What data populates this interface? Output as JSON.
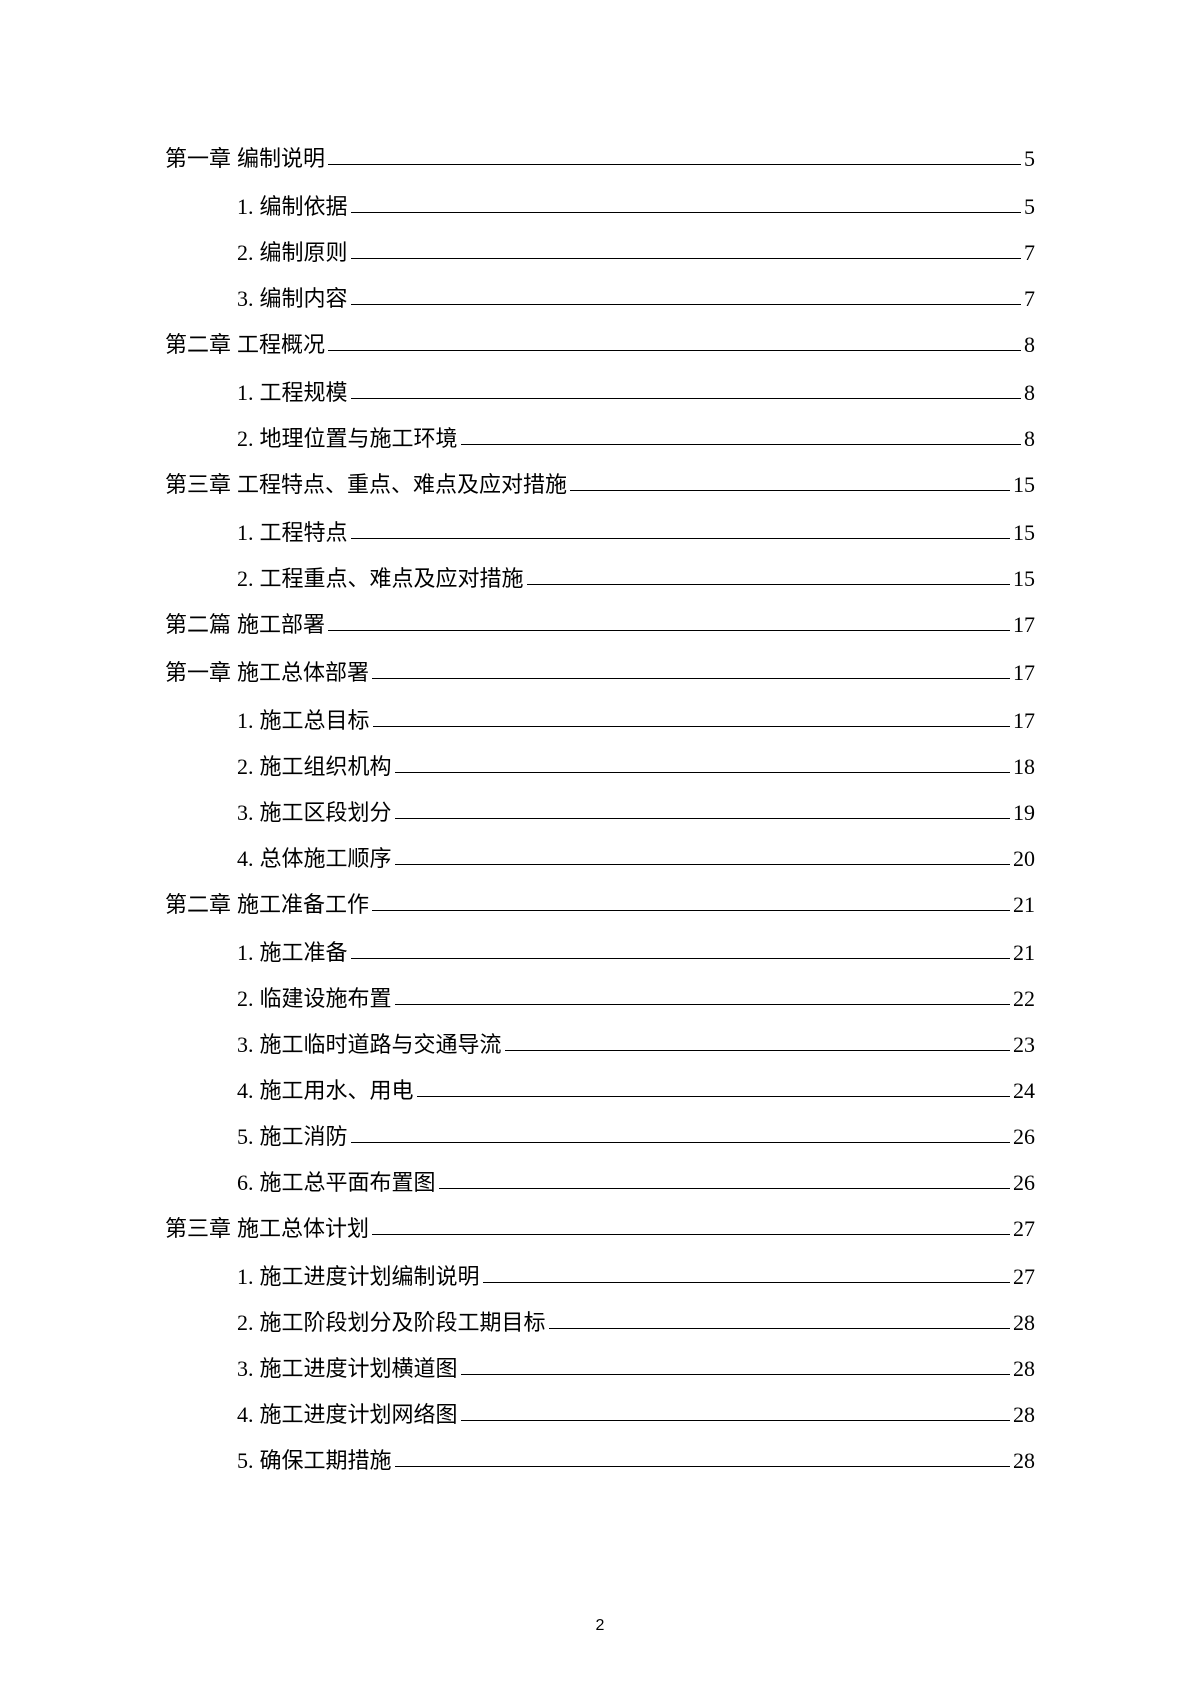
{
  "toc": [
    {
      "type": "chapter",
      "num": "第一章",
      "title": "编制说明",
      "page": "5"
    },
    {
      "type": "sub",
      "num": "1.",
      "title": "编制依据",
      "page": "5"
    },
    {
      "type": "sub",
      "num": "2.",
      "title": "编制原则",
      "page": "7"
    },
    {
      "type": "sub",
      "num": "3.",
      "title": "编制内容",
      "page": "7"
    },
    {
      "type": "chapter",
      "num": "第二章",
      "title": "工程概况",
      "page": "8"
    },
    {
      "type": "sub",
      "num": "1.",
      "title": "工程规模",
      "page": "8"
    },
    {
      "type": "sub",
      "num": "2.",
      "title": "地理位置与施工环境",
      "page": "8"
    },
    {
      "type": "chapter",
      "num": "第三章",
      "title": "工程特点、重点、难点及应对措施",
      "page": "15"
    },
    {
      "type": "sub",
      "num": "1.",
      "title": "工程特点",
      "page": "15"
    },
    {
      "type": "sub",
      "num": "2.",
      "title": "工程重点、难点及应对措施",
      "page": "15"
    },
    {
      "type": "chapter",
      "num": "第二篇",
      "title": "施工部署",
      "page": "17"
    },
    {
      "type": "chapter",
      "num": "第一章",
      "title": "施工总体部署",
      "page": "17"
    },
    {
      "type": "sub",
      "num": "1.",
      "title": "施工总目标",
      "page": "17"
    },
    {
      "type": "sub",
      "num": "2.",
      "title": "施工组织机构",
      "page": "18"
    },
    {
      "type": "sub",
      "num": "3.",
      "title": "施工区段划分",
      "page": "19"
    },
    {
      "type": "sub",
      "num": "4.",
      "title": "总体施工顺序",
      "page": "20"
    },
    {
      "type": "chapter",
      "num": "第二章",
      "title": "施工准备工作",
      "page": "21"
    },
    {
      "type": "sub",
      "num": "1.",
      "title": "施工准备",
      "page": "21"
    },
    {
      "type": "sub",
      "num": "2.",
      "title": "临建设施布置",
      "page": "22"
    },
    {
      "type": "sub",
      "num": "3.",
      "title": "施工临时道路与交通导流",
      "page": "23"
    },
    {
      "type": "sub",
      "num": "4.",
      "title": "施工用水、用电",
      "page": "24"
    },
    {
      "type": "sub",
      "num": "5.",
      "title": "施工消防",
      "page": "26"
    },
    {
      "type": "sub",
      "num": "6.",
      "title": "施工总平面布置图",
      "page": "26"
    },
    {
      "type": "chapter",
      "num": "第三章",
      "title": "施工总体计划",
      "page": "27"
    },
    {
      "type": "sub",
      "num": "1.",
      "title": "施工进度计划编制说明",
      "page": "27"
    },
    {
      "type": "sub",
      "num": "2.",
      "title": "施工阶段划分及阶段工期目标",
      "page": "28"
    },
    {
      "type": "sub",
      "num": "3.",
      "title": "施工进度计划横道图",
      "page": "28"
    },
    {
      "type": "sub",
      "num": "4.",
      "title": "施工进度计划网络图",
      "page": "28"
    },
    {
      "type": "sub",
      "num": "5.",
      "title": "确保工期措施",
      "page": "28"
    }
  ],
  "page_number": "2"
}
